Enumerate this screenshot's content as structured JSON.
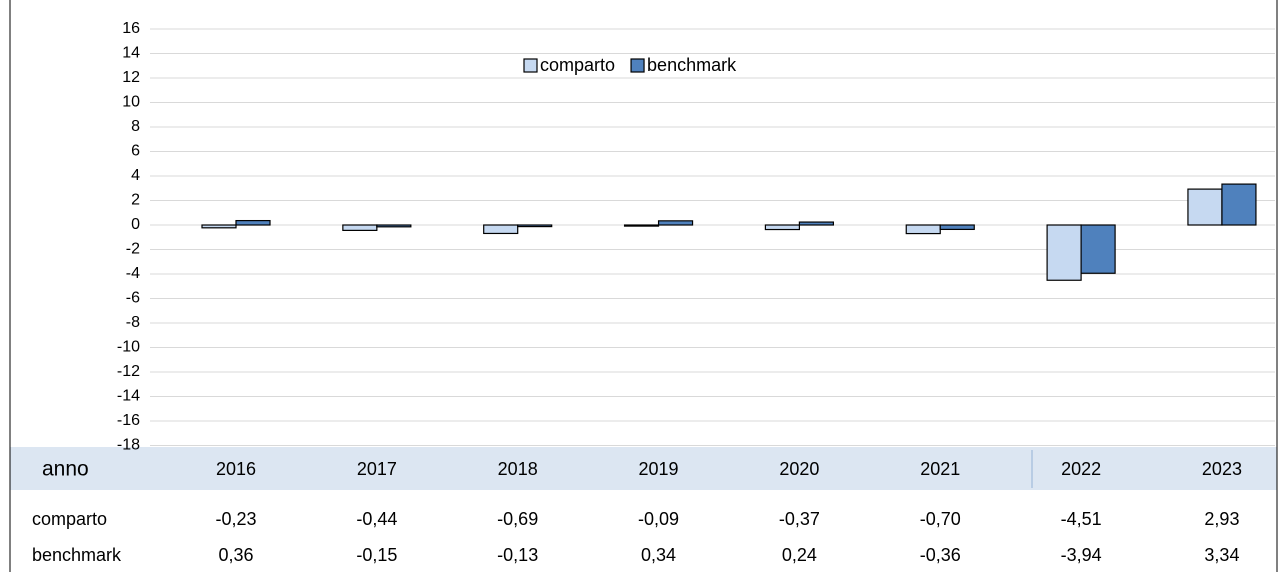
{
  "chart_data": {
    "type": "bar",
    "x_label": "anno",
    "categories": [
      "2016",
      "2017",
      "2018",
      "2019",
      "2020",
      "2021",
      "2022",
      "2023"
    ],
    "series": [
      {
        "name": "comparto",
        "color": "#c6d9f1",
        "values": [
          -0.23,
          -0.44,
          -0.69,
          -0.09,
          -0.37,
          -0.7,
          -4.51,
          2.93
        ],
        "value_labels": [
          "-0,23",
          "-0,44",
          "-0,69",
          "-0,09",
          "-0,37",
          "-0,70",
          "-4,51",
          "2,93"
        ]
      },
      {
        "name": "benchmark",
        "color": "#4f81bd",
        "values": [
          0.36,
          -0.15,
          -0.13,
          0.34,
          0.24,
          -0.36,
          -3.94,
          3.34
        ],
        "value_labels": [
          "0,36",
          "-0,15",
          "-0,13",
          "0,34",
          "0,24",
          "-0,36",
          "-3,94",
          "3,34"
        ]
      }
    ],
    "ylim": [
      -18,
      16
    ],
    "yticks": [
      16,
      14,
      12,
      10,
      8,
      6,
      4,
      2,
      0,
      -2,
      -4,
      -6,
      -8,
      -10,
      -12,
      -14,
      -16,
      -18
    ],
    "grid": true,
    "legend": "top"
  }
}
